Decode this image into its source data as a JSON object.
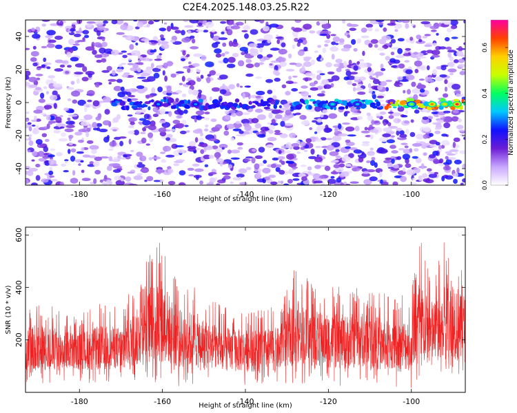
{
  "figure_title": "C2E4.2025.148.03.25.R22",
  "chart_data": [
    {
      "type": "heatmap",
      "title": "",
      "xlabel": "Height of straight line (km)",
      "ylabel": "Frequency (Hz)",
      "xlim": [
        -193,
        -87
      ],
      "ylim": [
        -50,
        50
      ],
      "xticks": [
        -180,
        -160,
        -140,
        -120,
        -100
      ],
      "yticks": [
        -40,
        -20,
        0,
        20,
        40
      ],
      "grid": false,
      "colorbar": {
        "label": "Normalized spectral amplitude",
        "range": [
          0,
          0.72
        ],
        "ticks": [
          0.0,
          0.2,
          0.4,
          0.6
        ],
        "colors": [
          "#ffffff",
          "#c9a6ff",
          "#6b1dd6",
          "#1010ff",
          "#00c8ff",
          "#00ff60",
          "#c8ff00",
          "#ffd000",
          "#ff4000",
          "#ff00a0"
        ]
      },
      "background_amplitude": [
        0.0,
        0.25
      ],
      "ridge": {
        "frequency_hz": -1,
        "segments": [
          {
            "x": [
              -172,
              -132
            ],
            "amplitude": [
              0.15,
              0.3
            ]
          },
          {
            "x": [
              -128,
              -107
            ],
            "amplitude": [
              0.2,
              0.35
            ]
          },
          {
            "x": [
              -106,
              -87
            ],
            "amplitude": [
              0.3,
              0.65
            ]
          }
        ],
        "peaks": [
          {
            "x": -161,
            "amplitude": 0.3
          },
          {
            "x": -152,
            "amplitude": 0.3
          },
          {
            "x": -119,
            "amplitude": 0.35
          },
          {
            "x": -113,
            "amplitude": 0.32
          },
          {
            "x": -100,
            "amplitude": 0.45
          },
          {
            "x": -95,
            "amplitude": 0.6
          },
          {
            "x": -92,
            "amplitude": 0.55
          },
          {
            "x": -89,
            "amplitude": 0.68
          }
        ]
      }
    },
    {
      "type": "line",
      "title": "",
      "xlabel": "Height of straight line (km)",
      "ylabel": "SNR (10 * v/v)",
      "xlim": [
        -193,
        -87
      ],
      "ylim": [
        0,
        630
      ],
      "xticks": [
        -180,
        -160,
        -140,
        -120,
        -100
      ],
      "yticks": [
        200,
        400,
        600
      ],
      "grid": false,
      "series": [
        {
          "color": "#ee2222",
          "envelope": {
            "x": [
              -193,
              -190,
              -185,
              -180,
              -175,
              -170,
              -166,
              -164,
              -162,
              -160,
              -158,
              -156,
              -152,
              -148,
              -144,
              -140,
              -136,
              -132,
              -128,
              -124,
              -120,
              -116,
              -112,
              -108,
              -104,
              -100,
              -98,
              -96,
              -94,
              -92,
              -90,
              -88,
              -87
            ],
            "lower": [
              30,
              25,
              30,
              40,
              30,
              40,
              30,
              20,
              15,
              10,
              20,
              20,
              25,
              30,
              25,
              25,
              30,
              30,
              35,
              30,
              25,
              20,
              30,
              20,
              15,
              15,
              30,
              20,
              30,
              40,
              30,
              20,
              30
            ],
            "upper": [
              330,
              360,
              320,
              300,
              340,
              330,
              430,
              500,
              590,
              600,
              490,
              430,
              410,
              350,
              330,
              320,
              320,
              330,
              480,
              420,
              410,
              400,
              410,
              390,
              360,
              400,
              600,
              480,
              470,
              600,
              625,
              500,
              520
            ]
          }
        }
      ]
    }
  ]
}
